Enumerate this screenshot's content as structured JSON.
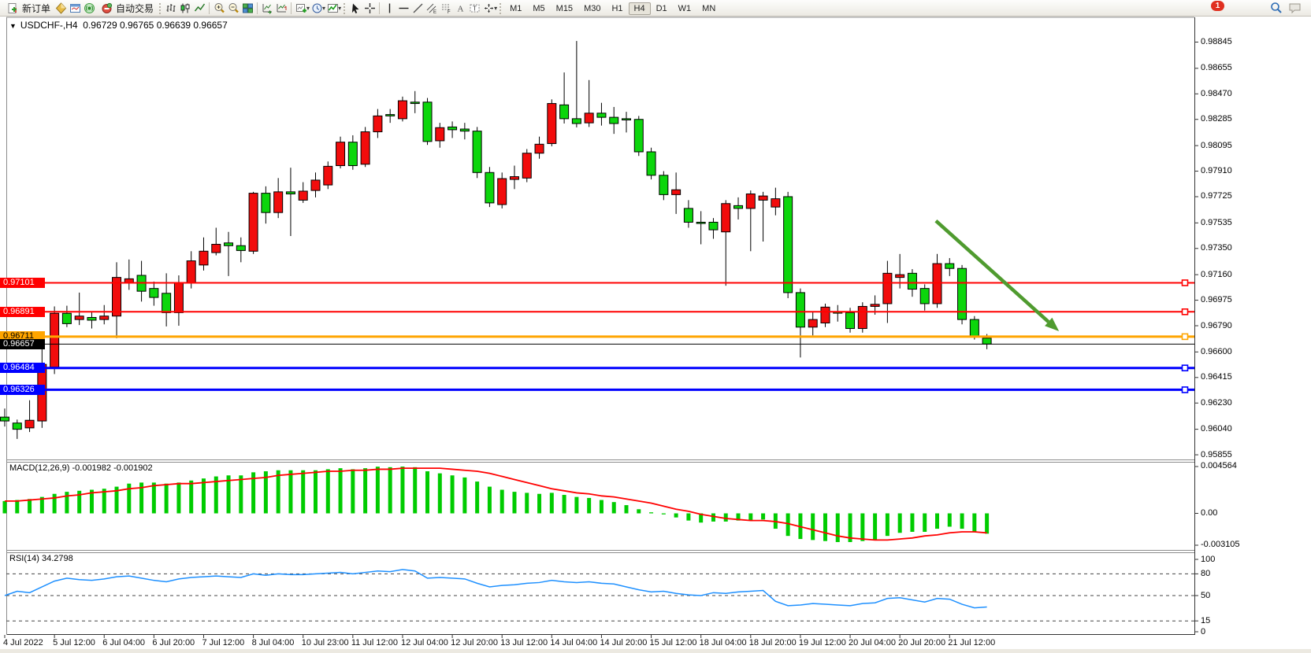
{
  "toolbar": {
    "new_order_label": "新订单",
    "autotrade_label": "自动交易",
    "timeframes": [
      "M1",
      "M5",
      "M15",
      "M30",
      "H1",
      "H4",
      "D1",
      "W1",
      "MN"
    ],
    "active_timeframe": "H4",
    "notification_badge": "1",
    "icon_names": [
      "new-order-icon",
      "gold-diamond-icon",
      "terminal-window-icon",
      "signal-icon",
      "autotrading-stop-icon",
      "bar-chart-icon",
      "candlestick-chart-icon",
      "line-chart-icon",
      "zoom-in-icon",
      "zoom-out-icon",
      "tile-windows-icon",
      "auto-scroll-icon",
      "chart-shift-icon",
      "new-chart-icon",
      "periods-clock-icon",
      "indicators-icon",
      "cursor-icon",
      "crosshair-icon",
      "vertical-line-icon",
      "horizontal-line-icon",
      "trendline-icon",
      "equidistant-channel-icon",
      "fibonacci-icon",
      "text-icon",
      "text-label-icon",
      "arrows-icon",
      "search-icon",
      "chat-icon"
    ]
  },
  "chart_header": {
    "dropdown": "▼",
    "symbol_period": "USDCHF-,H4",
    "ohlc": "0.96729 0.96765 0.96639 0.96657"
  },
  "indicators": {
    "macd": {
      "label": "MACD(12,26,9)",
      "values": "-0.001982 -0.001902",
      "axis_ticks": [
        "0.004564",
        "0.00",
        "-0.003105"
      ]
    },
    "rsi": {
      "label": "RSI(14)",
      "value": "34.2798",
      "axis_ticks": [
        "100",
        "80",
        "50",
        "15",
        "0"
      ],
      "level_lines": [
        80,
        50,
        15
      ]
    }
  },
  "chart_data": {
    "type": "candlestick",
    "symbol": "USDCHF",
    "period": "H4",
    "price_axis_ticks": [
      "0.98845",
      "0.98655",
      "0.98470",
      "0.98285",
      "0.98095",
      "0.97910",
      "0.97725",
      "0.97535",
      "0.97350",
      "0.97160",
      "0.96975",
      "0.96790",
      "0.96600",
      "0.96415",
      "0.96230",
      "0.96040",
      "0.95855"
    ],
    "time_labels": [
      "4 Jul 2022",
      "5 Jul 12:00",
      "6 Jul 04:00",
      "6 Jul 20:00",
      "7 Jul 12:00",
      "8 Jul 04:00",
      "10 Jul 23:00",
      "11 Jul 12:00",
      "12 Jul 04:00",
      "12 Jul 20:00",
      "13 Jul 12:00",
      "14 Jul 04:00",
      "14 Jul 20:00",
      "15 Jul 12:00",
      "18 Jul 04:00",
      "18 Jul 20:00",
      "19 Jul 12:00",
      "20 Jul 04:00",
      "20 Jul 20:00",
      "21 Jul 12:00"
    ],
    "label_every_n_bars": 4,
    "candles_ohlc": [
      [
        0.96128,
        0.9619,
        0.9606,
        0.961
      ],
      [
        0.96085,
        0.9611,
        0.9597,
        0.9604
      ],
      [
        0.9605,
        0.9625,
        0.9602,
        0.96105
      ],
      [
        0.961,
        0.9662,
        0.9605,
        0.9651
      ],
      [
        0.9649,
        0.9693,
        0.9644,
        0.9688
      ],
      [
        0.9688,
        0.96935,
        0.9678,
        0.96805
      ],
      [
        0.96835,
        0.9703,
        0.96795,
        0.9686
      ],
      [
        0.9685,
        0.9689,
        0.9677,
        0.9683
      ],
      [
        0.96835,
        0.9694,
        0.968,
        0.9686
      ],
      [
        0.9686,
        0.9725,
        0.967,
        0.9714
      ],
      [
        0.971,
        0.9727,
        0.9705,
        0.9713
      ],
      [
        0.97155,
        0.9726,
        0.96965,
        0.9704
      ],
      [
        0.9706,
        0.9711,
        0.96935,
        0.96995
      ],
      [
        0.97025,
        0.9717,
        0.96785,
        0.96885
      ],
      [
        0.96885,
        0.97155,
        0.9679,
        0.971
      ],
      [
        0.971,
        0.9733,
        0.9706,
        0.9726
      ],
      [
        0.9723,
        0.9743,
        0.9719,
        0.9733
      ],
      [
        0.9732,
        0.975,
        0.973,
        0.9738
      ],
      [
        0.9739,
        0.9747,
        0.9715,
        0.9737
      ],
      [
        0.9737,
        0.9743,
        0.9725,
        0.97335
      ],
      [
        0.9733,
        0.9776,
        0.9731,
        0.9775
      ],
      [
        0.9775,
        0.978,
        0.9753,
        0.9761
      ],
      [
        0.9761,
        0.9786,
        0.9757,
        0.9776
      ],
      [
        0.9776,
        0.97935,
        0.9744,
        0.97745
      ],
      [
        0.977,
        0.9783,
        0.9768,
        0.97765
      ],
      [
        0.9777,
        0.979,
        0.9772,
        0.97845
      ],
      [
        0.9781,
        0.9798,
        0.9778,
        0.97945
      ],
      [
        0.9795,
        0.9816,
        0.9793,
        0.9812
      ],
      [
        0.9812,
        0.9817,
        0.9792,
        0.9795
      ],
      [
        0.9796,
        0.9823,
        0.9794,
        0.98195
      ],
      [
        0.98195,
        0.9836,
        0.9815,
        0.9831
      ],
      [
        0.9832,
        0.9836,
        0.9826,
        0.9831
      ],
      [
        0.9829,
        0.9845,
        0.9827,
        0.9842
      ],
      [
        0.9841,
        0.9849,
        0.9833,
        0.984
      ],
      [
        0.9841,
        0.9844,
        0.981,
        0.98125
      ],
      [
        0.9813,
        0.9826,
        0.9808,
        0.98225
      ],
      [
        0.9823,
        0.9827,
        0.9815,
        0.9821
      ],
      [
        0.98215,
        0.9826,
        0.9814,
        0.982
      ],
      [
        0.982,
        0.9823,
        0.9786,
        0.979
      ],
      [
        0.979,
        0.9794,
        0.9765,
        0.9768
      ],
      [
        0.97668,
        0.979,
        0.9764,
        0.97856
      ],
      [
        0.9785,
        0.9795,
        0.9778,
        0.9787
      ],
      [
        0.9786,
        0.9807,
        0.9783,
        0.9804
      ],
      [
        0.9804,
        0.9816,
        0.98,
        0.98105
      ],
      [
        0.9811,
        0.9843,
        0.9809,
        0.984
      ],
      [
        0.9839,
        0.98625,
        0.98255,
        0.9829
      ],
      [
        0.9829,
        0.98853,
        0.98227,
        0.98255
      ],
      [
        0.9826,
        0.9857,
        0.9823,
        0.9833
      ],
      [
        0.9833,
        0.98405,
        0.9824,
        0.983
      ],
      [
        0.983,
        0.98375,
        0.9818,
        0.98255
      ],
      [
        0.9829,
        0.9834,
        0.9819,
        0.98285
      ],
      [
        0.98285,
        0.9831,
        0.9802,
        0.9805
      ],
      [
        0.9805,
        0.9808,
        0.9785,
        0.9788
      ],
      [
        0.9788,
        0.9791,
        0.977,
        0.9774
      ],
      [
        0.9774,
        0.979,
        0.976,
        0.97775
      ],
      [
        0.9764,
        0.977,
        0.975,
        0.9754
      ],
      [
        0.9754,
        0.9762,
        0.9738,
        0.97535
      ],
      [
        0.9754,
        0.9757,
        0.9742,
        0.97485
      ],
      [
        0.9747,
        0.977,
        0.9708,
        0.97675
      ],
      [
        0.9766,
        0.9772,
        0.9756,
        0.9764
      ],
      [
        0.9764,
        0.9777,
        0.9733,
        0.97745
      ],
      [
        0.977,
        0.9776,
        0.974,
        0.9773
      ],
      [
        0.9765,
        0.9779,
        0.9759,
        0.9771
      ],
      [
        0.97725,
        0.9776,
        0.9699,
        0.9703
      ],
      [
        0.9703,
        0.9706,
        0.9656,
        0.9678
      ],
      [
        0.9678,
        0.9689,
        0.9672,
        0.96835
      ],
      [
        0.9681,
        0.9695,
        0.9678,
        0.96925
      ],
      [
        0.9689,
        0.9694,
        0.9682,
        0.96885
      ],
      [
        0.96885,
        0.9692,
        0.9674,
        0.9677
      ],
      [
        0.9677,
        0.9696,
        0.9674,
        0.9693
      ],
      [
        0.9693,
        0.9701,
        0.9687,
        0.96945
      ],
      [
        0.9695,
        0.9726,
        0.9681,
        0.9717
      ],
      [
        0.9714,
        0.9731,
        0.9706,
        0.9716
      ],
      [
        0.9717,
        0.972,
        0.97,
        0.97055
      ],
      [
        0.9706,
        0.9709,
        0.969,
        0.9695
      ],
      [
        0.9695,
        0.9731,
        0.9692,
        0.9724
      ],
      [
        0.9724,
        0.9728,
        0.9715,
        0.97205
      ],
      [
        0.97205,
        0.9723,
        0.968,
        0.96835
      ],
      [
        0.96835,
        0.9686,
        0.9669,
        0.96712
      ],
      [
        0.967,
        0.9673,
        0.9662,
        0.96657
      ]
    ],
    "levels": [
      {
        "price": 0.97101,
        "label": "0.97101",
        "color": "#ff0000",
        "text_color": "#ffffff",
        "width": 2
      },
      {
        "price": 0.96891,
        "label": "0.96891",
        "color": "#ff0000",
        "text_color": "#ffffff",
        "width": 2
      },
      {
        "price": 0.96711,
        "label": "0.96711",
        "color": "#ffa500",
        "text_color": "#000000",
        "width": 3
      },
      {
        "price": 0.96484,
        "label": "0.96484",
        "color": "#0000ff",
        "text_color": "#ffffff",
        "width": 3
      },
      {
        "price": 0.96326,
        "label": "0.96326",
        "color": "#0000ff",
        "text_color": "#ffffff",
        "width": 3
      }
    ],
    "current_price": {
      "price": 0.96657,
      "label": "0.96657",
      "line_color": "#000000",
      "tag_bg": "#000000",
      "tag_text": "#ffffff"
    },
    "macd": {
      "histogram": [
        0.0012,
        0.0013,
        0.0014,
        0.0016,
        0.0019,
        0.0021,
        0.0022,
        0.0023,
        0.0024,
        0.0026,
        0.0029,
        0.003,
        0.003,
        0.0029,
        0.003,
        0.0032,
        0.0034,
        0.0036,
        0.0037,
        0.0037,
        0.004,
        0.0041,
        0.0042,
        0.0042,
        0.0042,
        0.0042,
        0.0043,
        0.0044,
        0.0043,
        0.0044,
        0.00455,
        0.0045,
        0.00456,
        0.0045,
        0.0041,
        0.0039,
        0.0037,
        0.0035,
        0.0031,
        0.0026,
        0.0023,
        0.0021,
        0.002,
        0.0019,
        0.002,
        0.0018,
        0.0016,
        0.0015,
        0.0013,
        0.0011,
        0.0008,
        0.0004,
        0.0001,
        -0.0001,
        -0.0004,
        -0.0007,
        -0.0009,
        -0.0008,
        -0.0008,
        -0.0007,
        -0.0007,
        -0.0006,
        -0.0015,
        -0.0022,
        -0.0025,
        -0.0026,
        -0.0027,
        -0.0028,
        -0.0028,
        -0.0027,
        -0.0026,
        -0.0022,
        -0.0019,
        -0.0018,
        -0.0018,
        -0.0015,
        -0.0013,
        -0.0015,
        -0.0018,
        -0.001982
      ],
      "signal": [
        0.0012,
        0.0012,
        0.0013,
        0.0014,
        0.0015,
        0.0017,
        0.0018,
        0.002,
        0.0021,
        0.0022,
        0.0024,
        0.0025,
        0.0027,
        0.0028,
        0.0029,
        0.0029,
        0.003,
        0.0031,
        0.0032,
        0.0033,
        0.0034,
        0.0035,
        0.0037,
        0.0038,
        0.0039,
        0.004,
        0.0041,
        0.0041,
        0.0042,
        0.0042,
        0.0043,
        0.0043,
        0.0044,
        0.0044,
        0.0044,
        0.0044,
        0.0043,
        0.0042,
        0.0041,
        0.0039,
        0.0036,
        0.0033,
        0.003,
        0.0027,
        0.0024,
        0.0022,
        0.002,
        0.0019,
        0.0017,
        0.0016,
        0.0014,
        0.0012,
        0.001,
        0.0007,
        0.0004,
        0.0002,
        -0.0001,
        -0.0003,
        -0.0005,
        -0.0006,
        -0.0007,
        -0.0007,
        -0.0008,
        -0.001,
        -0.0013,
        -0.0016,
        -0.0019,
        -0.0022,
        -0.0024,
        -0.0025,
        -0.0026,
        -0.0026,
        -0.0025,
        -0.0024,
        -0.0022,
        -0.0021,
        -0.0019,
        -0.0018,
        -0.0018,
        -0.001902
      ]
    },
    "rsi": {
      "values": [
        50,
        56,
        54,
        62,
        70,
        74,
        72,
        71,
        73,
        76,
        77,
        74,
        71,
        69,
        73,
        75,
        76,
        77,
        76,
        75,
        80,
        78,
        80,
        79,
        79,
        80,
        81,
        82,
        80,
        82,
        84,
        83,
        86,
        84,
        74,
        75,
        74,
        73,
        67,
        62,
        64,
        65,
        67,
        68,
        71,
        69,
        68,
        69,
        67,
        66,
        62,
        58,
        55,
        56,
        53,
        51,
        50,
        54,
        53,
        55,
        56,
        57,
        42,
        36,
        37,
        39,
        38,
        37,
        36,
        39,
        40,
        46,
        47,
        44,
        41,
        46,
        45,
        38,
        33,
        34.2798
      ]
    },
    "arrow_annotation": {
      "from_bar": 74.9,
      "from_price": 0.9755,
      "to_bar": 84.8,
      "to_price": 0.9675,
      "color": "#4f9b2f"
    },
    "colors": {
      "bull_body": "#f20c0c",
      "bear_body": "#0cd60c",
      "candle_border": "#000000",
      "wick": "#000000",
      "macd_histogram": "#00cc00",
      "macd_signal": "#ff0000",
      "rsi_line": "#1e90ff"
    }
  }
}
